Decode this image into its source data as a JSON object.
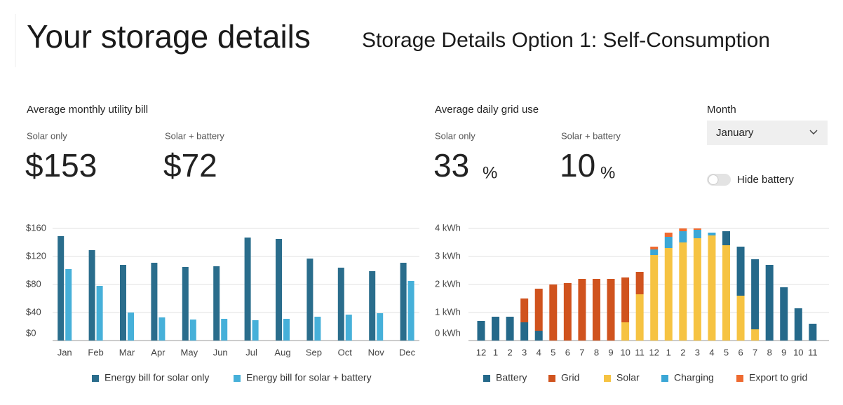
{
  "header": {
    "title": "Your storage details",
    "subtitle": "Storage Details Option 1: Self-Consumption"
  },
  "bill": {
    "title": "Average monthly utility bill",
    "solar_only_label": "Solar only",
    "solar_only_value": "$153",
    "battery_label": "Solar + battery",
    "battery_value": "$72"
  },
  "grid_use": {
    "title": "Average daily grid use",
    "solar_only_label": "Solar only",
    "solar_only_value": "33",
    "battery_label": "Solar + battery",
    "battery_value": "10",
    "unit": "%"
  },
  "controls": {
    "month_label": "Month",
    "month_value": "January",
    "toggle_label": "Hide battery"
  },
  "chart_data": [
    {
      "type": "bar",
      "categories": [
        "Jan",
        "Feb",
        "Mar",
        "Apr",
        "May",
        "Jun",
        "Jul",
        "Aug",
        "Sep",
        "Oct",
        "Nov",
        "Dec"
      ],
      "series": [
        {
          "name": "Energy bill for solar only",
          "color": "#2a6d8c",
          "values": [
            149,
            129,
            108,
            111,
            105,
            106,
            147,
            145,
            117,
            104,
            99,
            111
          ]
        },
        {
          "name": "Energy bill for solar + battery",
          "color": "#46b0d9",
          "values": [
            102,
            78,
            40,
            33,
            30,
            31,
            29,
            31,
            34,
            37,
            39,
            85
          ]
        }
      ],
      "ylim": [
        0,
        160
      ],
      "yticks": [
        {
          "value": 0,
          "label": "$0"
        },
        {
          "value": 40,
          "label": "$40"
        },
        {
          "value": 80,
          "label": "$80"
        },
        {
          "value": 120,
          "label": "$120"
        },
        {
          "value": 160,
          "label": "$160"
        }
      ],
      "grid": true,
      "legend": "bottom"
    },
    {
      "type": "stacked_bar",
      "categories": [
        "12",
        "1",
        "2",
        "3",
        "4",
        "5",
        "6",
        "7",
        "8",
        "9",
        "10",
        "11",
        "12",
        "1",
        "2",
        "3",
        "4",
        "5",
        "6",
        "7",
        "8",
        "9",
        "10",
        "11"
      ],
      "series": [
        {
          "name": "Battery",
          "color": "#25698a",
          "values": [
            0.7,
            0.85,
            0.85,
            0.65,
            0.35,
            0,
            0,
            0,
            0,
            0,
            0,
            0,
            0,
            0,
            0,
            0,
            0,
            0.5,
            1.75,
            2.5,
            2.7,
            1.9,
            1.15,
            0.6
          ]
        },
        {
          "name": "Grid",
          "color": "#d0531e",
          "values": [
            0,
            0,
            0,
            0.85,
            1.5,
            2.0,
            2.05,
            2.2,
            2.2,
            2.2,
            1.6,
            0.8,
            0,
            0,
            0,
            0,
            0,
            0,
            0,
            0,
            0,
            0,
            0,
            0
          ]
        },
        {
          "name": "Solar",
          "color": "#f6c342",
          "values": [
            0,
            0,
            0,
            0,
            0,
            0,
            0,
            0,
            0,
            0,
            0.65,
            1.65,
            3.05,
            3.3,
            3.5,
            3.65,
            3.75,
            3.4,
            1.6,
            0.4,
            0,
            0,
            0,
            0
          ]
        },
        {
          "name": "Charging",
          "color": "#3ba7d6",
          "values": [
            0,
            0,
            0,
            0,
            0,
            0,
            0,
            0,
            0,
            0,
            0,
            0,
            0.2,
            0.4,
            0.4,
            0.3,
            0.1,
            0,
            0,
            0,
            0,
            0,
            0,
            0
          ]
        },
        {
          "name": "Export to grid",
          "color": "#ee6a30",
          "values": [
            0,
            0,
            0,
            0,
            0,
            0,
            0,
            0,
            0,
            0,
            0,
            0,
            0.1,
            0.15,
            0.1,
            0.05,
            0,
            0,
            0,
            0,
            0,
            0,
            0,
            0
          ]
        }
      ],
      "ylim": [
        0,
        4
      ],
      "yticks": [
        {
          "value": 0,
          "label": "0 kWh"
        },
        {
          "value": 1,
          "label": "1 kWh"
        },
        {
          "value": 2,
          "label": "2 kWh"
        },
        {
          "value": 3,
          "label": "3 kWh"
        },
        {
          "value": 4,
          "label": "4 kWh"
        }
      ],
      "grid": true,
      "legend": "bottom"
    }
  ]
}
